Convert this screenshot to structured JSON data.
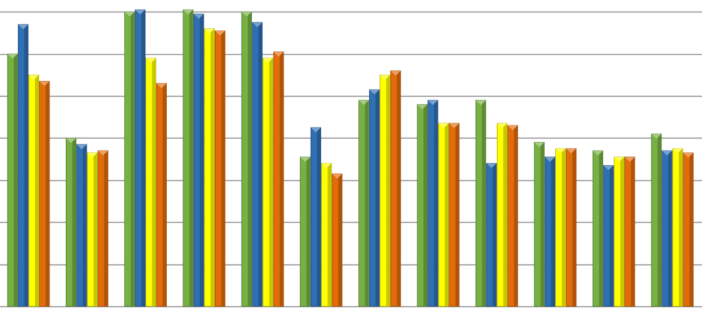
{
  "chart_data": {
    "type": "bar",
    "ylim": [
      0,
      7.2
    ],
    "grid": true,
    "gridlines": [
      1,
      2,
      3,
      4,
      5,
      6,
      7
    ],
    "categories": [
      "",
      "",
      "",
      "",
      "",
      "",
      "",
      "",
      "",
      "",
      "",
      ""
    ],
    "series": [
      {
        "color": "#77b144",
        "values": [
          6.0,
          4.0,
          7.0,
          7.05,
          7.0,
          3.55,
          4.9,
          4.8,
          4.9,
          3.9,
          3.7,
          4.1
        ]
      },
      {
        "color": "#2f6fb3",
        "values": [
          6.7,
          3.85,
          7.05,
          6.95,
          6.75,
          4.25,
          5.15,
          4.9,
          3.4,
          3.55,
          3.35,
          3.7
        ]
      },
      {
        "color": "#ffff00",
        "values": [
          5.5,
          3.65,
          5.9,
          6.6,
          5.9,
          3.4,
          5.5,
          4.35,
          4.35,
          3.75,
          3.55,
          3.75
        ]
      },
      {
        "color": "#e36c0a",
        "values": [
          5.35,
          3.7,
          5.3,
          6.55,
          6.05,
          3.15,
          5.6,
          4.35,
          4.3,
          3.75,
          3.55,
          3.65
        ]
      }
    ]
  }
}
